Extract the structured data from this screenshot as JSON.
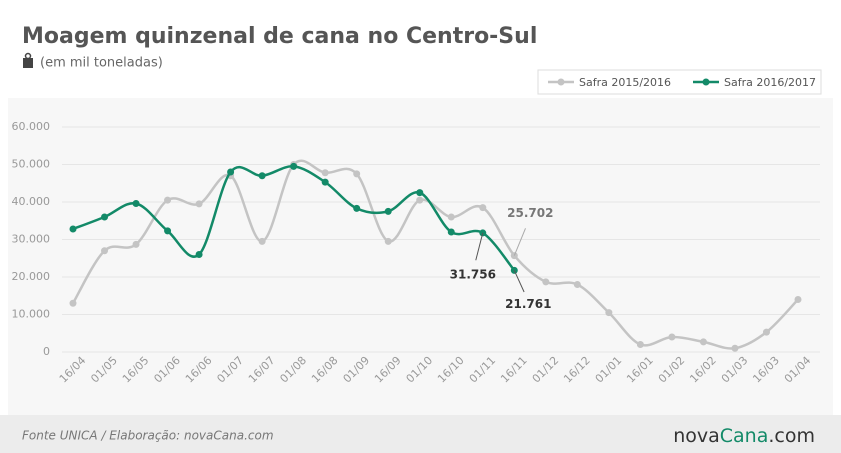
{
  "chart_data": {
    "type": "line",
    "title": "Moagem quinzenal de cana no Centro-Sul",
    "subtitle": "(em mil toneladas)",
    "source": "Fonte UNICA / Elaboração: novaCana.com",
    "logo": [
      "nova",
      "Cana",
      ".com"
    ],
    "categories": [
      "16/04",
      "01/05",
      "16/05",
      "01/06",
      "16/06",
      "01/07",
      "16/07",
      "01/08",
      "16/08",
      "01/09",
      "16/09",
      "01/10",
      "16/10",
      "01/11",
      "16/11",
      "01/12",
      "16/12",
      "01/01",
      "16/01",
      "01/02",
      "16/02",
      "01/03",
      "16/03",
      "01/04"
    ],
    "series": [
      {
        "name": "Safra 2015/2016",
        "color": "#c4c4c4",
        "values": [
          13000,
          27000,
          28700,
          40500,
          39500,
          47000,
          29500,
          50000,
          47800,
          47500,
          29500,
          40500,
          36000,
          38500,
          25702,
          18700,
          18000,
          10500,
          2000,
          4000,
          2700,
          1000,
          5300,
          14000
        ],
        "value_labels": [
          null,
          null,
          null,
          null,
          null,
          null,
          null,
          null,
          null,
          null,
          null,
          null,
          null,
          null,
          "25.702",
          null,
          null,
          null,
          null,
          null,
          null,
          null,
          null,
          null
        ]
      },
      {
        "name": "Safra 2016/2017",
        "color": "#138a68",
        "values": [
          32800,
          36000,
          39600,
          32300,
          26000,
          48000,
          47000,
          49500,
          45300,
          38300,
          37500,
          42500,
          32000,
          31756,
          21761,
          null,
          null,
          null,
          null,
          null,
          null,
          null,
          null,
          null
        ],
        "value_labels": [
          null,
          null,
          null,
          null,
          null,
          null,
          null,
          null,
          null,
          null,
          null,
          null,
          null,
          "31.756",
          "21.761",
          null,
          null,
          null,
          null,
          null,
          null,
          null,
          null,
          null
        ]
      }
    ],
    "ylim": [
      0,
      60000
    ],
    "yticks": [
      0,
      {
        "value": 10000,
        "label": "10.000"
      },
      {
        "value": 20000,
        "label": "20.000"
      },
      {
        "value": 30000,
        "label": "30.000"
      },
      {
        "value": 40000,
        "label": "40.000"
      },
      {
        "value": 50000,
        "label": "50.000"
      },
      {
        "value": 60000,
        "label": "60.000"
      }
    ],
    "grid": true,
    "legend": "top-right"
  }
}
